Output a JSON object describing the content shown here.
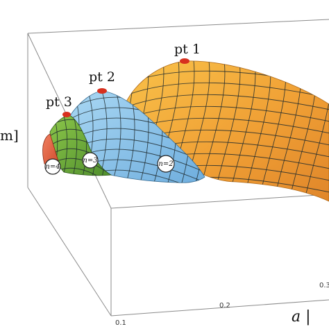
{
  "chart_data": {
    "type": "surface3d",
    "title": "",
    "xlabel": "a |",
    "zlabel": "m]",
    "x_ticks": [
      "0.1",
      "0.2",
      "0.3"
    ],
    "colors": {
      "n1": "#f2a93b",
      "n2": "#8cc4ea",
      "n3": "#72ad3c",
      "n4": "#e2643f",
      "peak_marker": "#d7301f"
    },
    "peaks": [
      {
        "label": "pt 1",
        "lobe": 1
      },
      {
        "label": "pt 2",
        "lobe": 2
      },
      {
        "label": "pt 3",
        "lobe": 3
      }
    ],
    "lobes": [
      {
        "n": 1,
        "label": ""
      },
      {
        "n": 2,
        "label": "n=2"
      },
      {
        "n": 3,
        "label": "n=3"
      },
      {
        "n": 4,
        "label": "n=4"
      }
    ]
  }
}
